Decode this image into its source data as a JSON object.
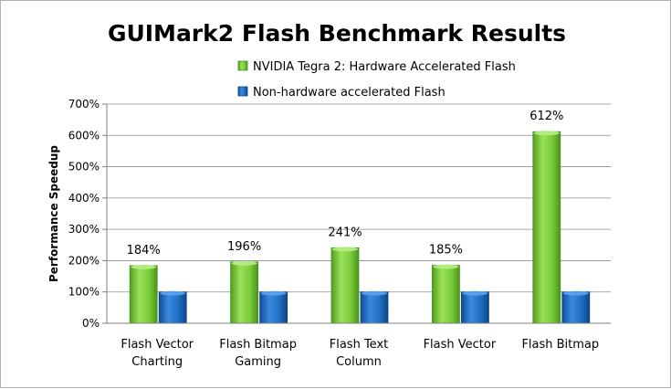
{
  "chart_data": {
    "type": "bar",
    "title": "GUIMark2 Flash Benchmark Results",
    "ylabel": "Performance Speedup",
    "xlabel": "",
    "ylim": [
      0,
      700
    ],
    "yticks": [
      0,
      100,
      200,
      300,
      400,
      500,
      600,
      700
    ],
    "ytick_labels": [
      "0%",
      "100%",
      "200%",
      "300%",
      "400%",
      "500%",
      "600%",
      "700%"
    ],
    "grid": true,
    "legend_position": "top",
    "categories": [
      [
        "Flash Vector",
        "Charting"
      ],
      [
        "Flash Bitmap",
        "Gaming"
      ],
      [
        "Flash Text",
        "Column"
      ],
      [
        "Flash Vector"
      ],
      [
        "Flash Bitmap"
      ]
    ],
    "series": [
      {
        "name": "NVIDIA Tegra 2: Hardware Accelerated Flash",
        "color": "#7acc3a",
        "values": [
          184,
          196,
          241,
          185,
          612
        ],
        "labels": [
          "184%",
          "196%",
          "241%",
          "185%",
          "612%"
        ]
      },
      {
        "name": "Non-hardware accelerated Flash",
        "color": "#1f6fc4",
        "values": [
          100,
          100,
          100,
          100,
          100
        ],
        "labels": []
      }
    ]
  }
}
